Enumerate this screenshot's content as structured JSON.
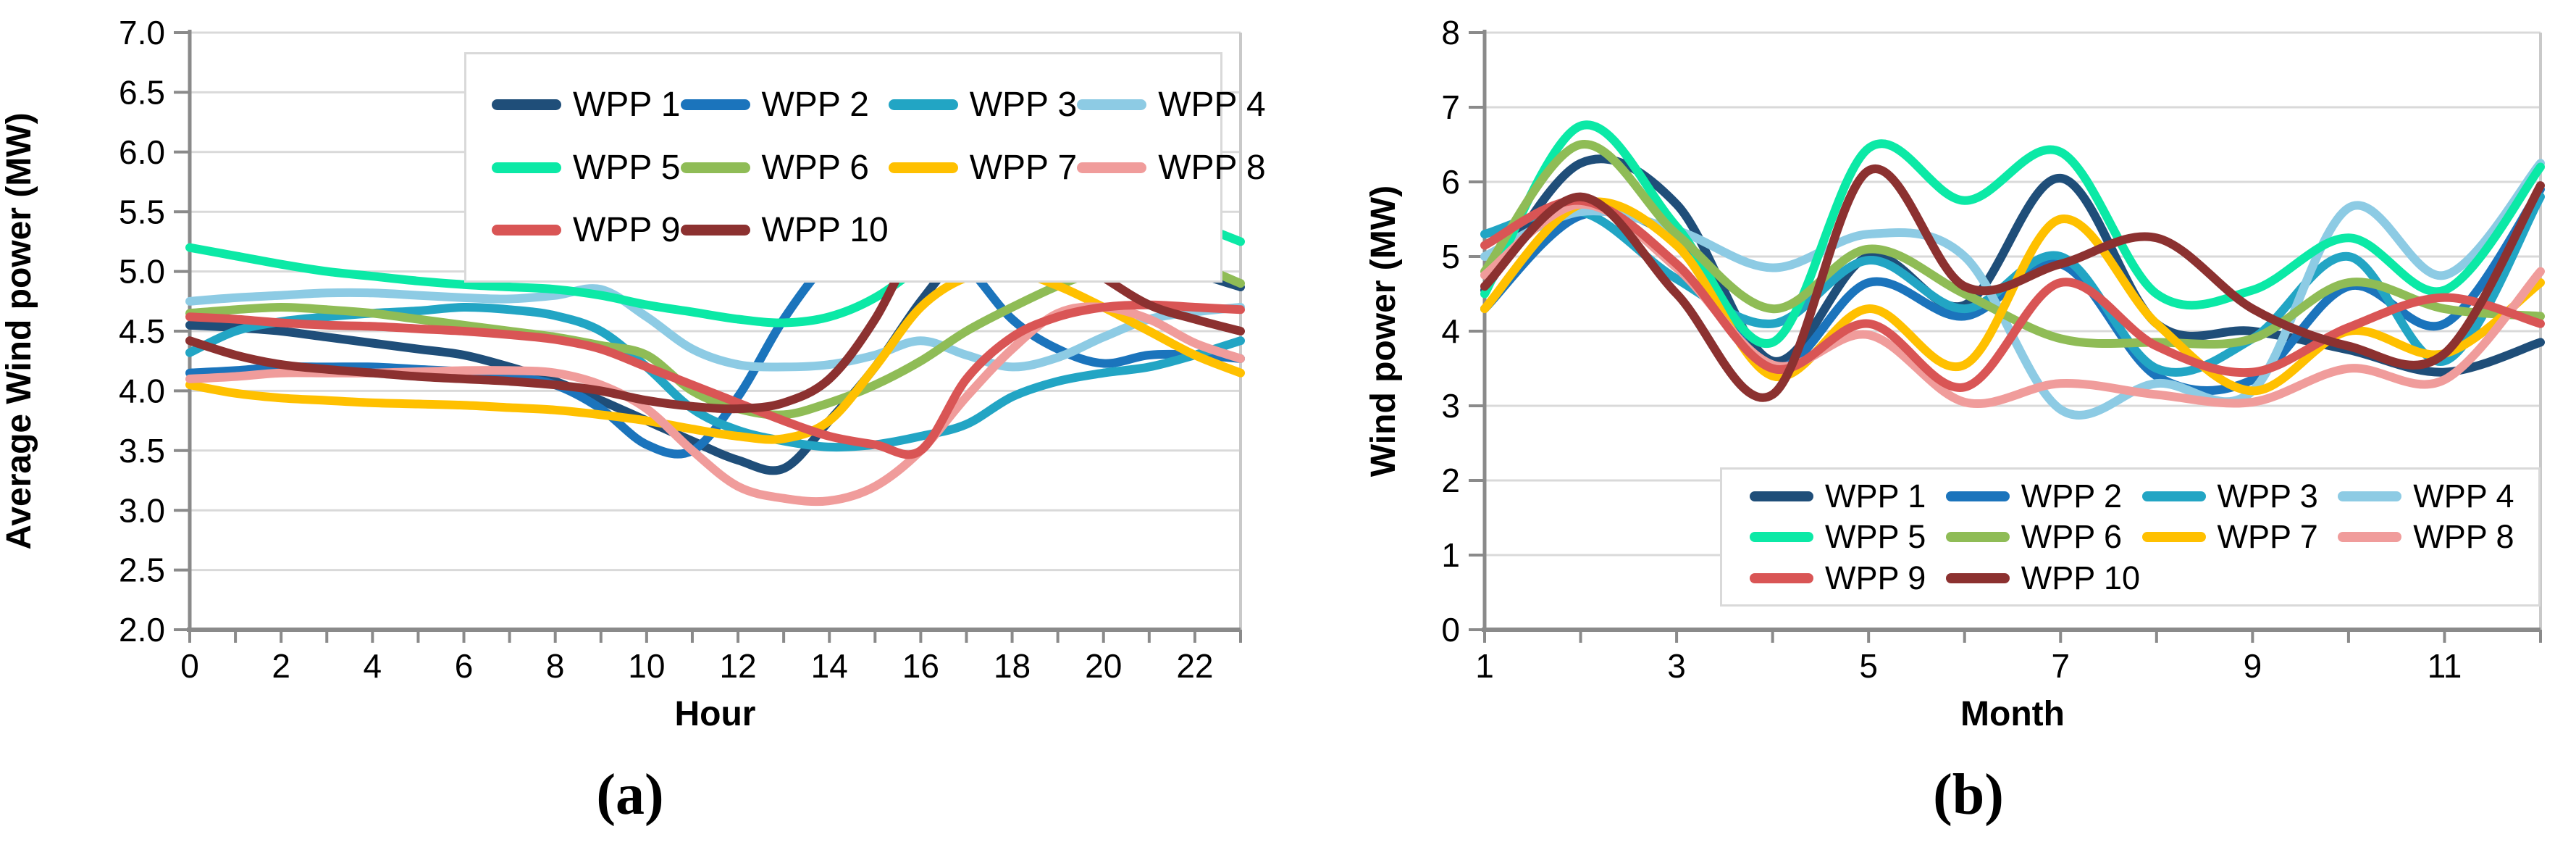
{
  "page": {
    "background": "#FFFFFF",
    "text_color": "#000000"
  },
  "captions": {
    "a": "(a)",
    "b": "(b)"
  },
  "styles": {
    "axis_color": "#8A8A8A",
    "grid_color": "#D9D9D9",
    "plot_border_color": "#C9C9C9",
    "legend_border_color": "#D9D9D9",
    "series_stroke_width": 12
  },
  "chart_data": [
    {
      "id": "a",
      "type": "line",
      "title": "",
      "xlabel": "Hour",
      "ylabel": "Average Wind power (MW)",
      "xlim": [
        0,
        23
      ],
      "ylim": [
        2.0,
        7.0
      ],
      "grid": true,
      "legend_position": "top-center-boxed",
      "ytick_values": [
        2.0,
        2.5,
        3.0,
        3.5,
        4.0,
        4.5,
        5.0,
        5.5,
        6.0,
        6.5,
        7.0
      ],
      "ytick_labels": [
        "2.0",
        "2.5",
        "3.0",
        "3.5",
        "4.0",
        "4.5",
        "5.0",
        "5.5",
        "6.0",
        "6.5",
        "7.0"
      ],
      "xtick_minor_values": [
        0,
        1,
        2,
        3,
        4,
        5,
        6,
        7,
        8,
        9,
        10,
        11,
        12,
        13,
        14,
        15,
        16,
        17,
        18,
        19,
        20,
        21,
        22,
        23
      ],
      "xtick_label_values": [
        0,
        2,
        4,
        6,
        8,
        10,
        12,
        14,
        16,
        18,
        20,
        22
      ],
      "xtick_labels": [
        "0",
        "2",
        "4",
        "6",
        "8",
        "10",
        "12",
        "14",
        "16",
        "18",
        "20",
        "22"
      ],
      "x": [
        0,
        1,
        2,
        3,
        4,
        5,
        6,
        7,
        8,
        9,
        10,
        11,
        12,
        13,
        14,
        15,
        16,
        17,
        18,
        19,
        20,
        21,
        22,
        23
      ],
      "series": [
        {
          "name": "WPP 1",
          "color": "#1F4E79",
          "values": [
            4.55,
            4.53,
            4.5,
            4.45,
            4.4,
            4.35,
            4.3,
            4.2,
            4.08,
            3.92,
            3.75,
            3.58,
            3.42,
            3.35,
            3.75,
            4.2,
            4.75,
            5.2,
            5.45,
            5.55,
            5.45,
            5.2,
            5.0,
            4.87
          ]
        },
        {
          "name": "WPP 2",
          "color": "#1B74BC",
          "values": [
            4.15,
            4.17,
            4.2,
            4.2,
            4.2,
            4.18,
            4.16,
            4.12,
            4.05,
            3.85,
            3.55,
            3.5,
            3.95,
            4.6,
            5.1,
            5.4,
            5.35,
            5.05,
            4.6,
            4.35,
            4.23,
            4.3,
            4.3,
            4.27
          ]
        },
        {
          "name": "WPP 3",
          "color": "#22A5C4",
          "values": [
            4.32,
            4.5,
            4.58,
            4.62,
            4.65,
            4.67,
            4.7,
            4.68,
            4.63,
            4.5,
            4.2,
            3.85,
            3.67,
            3.58,
            3.53,
            3.55,
            3.62,
            3.72,
            3.95,
            4.08,
            4.15,
            4.2,
            4.3,
            4.42
          ]
        },
        {
          "name": "WPP 4",
          "color": "#8DCBE4",
          "values": [
            4.75,
            4.78,
            4.8,
            4.82,
            4.82,
            4.8,
            4.78,
            4.77,
            4.8,
            4.85,
            4.62,
            4.35,
            4.22,
            4.2,
            4.22,
            4.3,
            4.42,
            4.3,
            4.2,
            4.28,
            4.45,
            4.6,
            4.66,
            4.7
          ]
        },
        {
          "name": "WPP 5",
          "color": "#0BE9A6",
          "values": [
            5.2,
            5.13,
            5.06,
            5.0,
            4.96,
            4.92,
            4.89,
            4.87,
            4.85,
            4.8,
            4.72,
            4.66,
            4.6,
            4.57,
            4.62,
            4.78,
            5.05,
            5.35,
            5.65,
            5.78,
            5.72,
            5.55,
            5.4,
            5.25
          ]
        },
        {
          "name": "WPP 6",
          "color": "#8FBC56",
          "values": [
            4.65,
            4.68,
            4.7,
            4.68,
            4.65,
            4.6,
            4.55,
            4.5,
            4.45,
            4.38,
            4.3,
            4.0,
            3.85,
            3.8,
            3.9,
            4.05,
            4.25,
            4.5,
            4.7,
            4.88,
            5.02,
            5.1,
            5.05,
            4.9
          ]
        },
        {
          "name": "WPP 7",
          "color": "#FFC000",
          "values": [
            4.05,
            3.98,
            3.94,
            3.92,
            3.9,
            3.89,
            3.88,
            3.86,
            3.84,
            3.8,
            3.75,
            3.68,
            3.62,
            3.6,
            3.75,
            4.2,
            4.7,
            4.95,
            5.0,
            4.88,
            4.7,
            4.5,
            4.3,
            4.15
          ]
        },
        {
          "name": "WPP 8",
          "color": "#F09C9B",
          "values": [
            4.1,
            4.12,
            4.15,
            4.15,
            4.15,
            4.16,
            4.17,
            4.17,
            4.15,
            4.05,
            3.85,
            3.5,
            3.2,
            3.1,
            3.08,
            3.2,
            3.5,
            3.95,
            4.35,
            4.65,
            4.7,
            4.6,
            4.4,
            4.27
          ]
        },
        {
          "name": "WPP 9",
          "color": "#D95555",
          "values": [
            4.62,
            4.6,
            4.57,
            4.55,
            4.54,
            4.52,
            4.5,
            4.47,
            4.43,
            4.35,
            4.2,
            4.05,
            3.9,
            3.75,
            3.62,
            3.55,
            3.5,
            4.1,
            4.45,
            4.62,
            4.7,
            4.72,
            4.7,
            4.68
          ]
        },
        {
          "name": "WPP 10",
          "color": "#8C3130",
          "values": [
            4.42,
            4.3,
            4.22,
            4.18,
            4.15,
            4.12,
            4.1,
            4.08,
            4.05,
            4.0,
            3.92,
            3.87,
            3.85,
            3.9,
            4.1,
            4.6,
            5.3,
            5.6,
            5.5,
            5.2,
            4.95,
            4.72,
            4.6,
            4.5
          ]
        }
      ]
    },
    {
      "id": "b",
      "type": "line",
      "title": "",
      "xlabel": "Month",
      "ylabel": "Wind power (MW)",
      "xlim": [
        1,
        12
      ],
      "ylim": [
        0,
        8
      ],
      "grid": true,
      "legend_position": "bottom-right-boxed",
      "ytick_values": [
        0,
        1,
        2,
        3,
        4,
        5,
        6,
        7,
        8
      ],
      "ytick_labels": [
        "0",
        "1",
        "2",
        "3",
        "4",
        "5",
        "6",
        "7",
        "8"
      ],
      "xtick_minor_values": [
        1,
        2,
        3,
        4,
        5,
        6,
        7,
        8,
        9,
        10,
        11,
        12
      ],
      "xtick_label_values": [
        1,
        3,
        5,
        7,
        9,
        11
      ],
      "xtick_labels": [
        "1",
        "3",
        "5",
        "7",
        "9",
        "11"
      ],
      "x": [
        1,
        2,
        3,
        4,
        5,
        6,
        7,
        8,
        9,
        10,
        11,
        12
      ],
      "series": [
        {
          "name": "WPP 1",
          "color": "#1F4E79",
          "values": [
            4.55,
            6.25,
            5.7,
            3.6,
            5.0,
            4.35,
            6.05,
            4.1,
            4.0,
            3.75,
            3.45,
            3.85
          ]
        },
        {
          "name": "WPP 2",
          "color": "#1B74BC",
          "values": [
            4.3,
            5.55,
            5.2,
            3.5,
            4.65,
            4.2,
            4.9,
            3.4,
            3.35,
            4.6,
            4.1,
            5.9
          ]
        },
        {
          "name": "WPP 3",
          "color": "#22A5C4",
          "values": [
            5.3,
            5.6,
            4.7,
            4.1,
            4.95,
            4.3,
            5.0,
            3.5,
            3.9,
            5.0,
            3.6,
            5.8
          ]
        },
        {
          "name": "WPP 4",
          "color": "#8DCBE4",
          "values": [
            5.0,
            5.6,
            5.35,
            4.85,
            5.3,
            5.0,
            2.95,
            3.3,
            3.2,
            5.65,
            4.75,
            6.25
          ]
        },
        {
          "name": "WPP 5",
          "color": "#0BE9A6",
          "values": [
            4.5,
            6.75,
            5.4,
            3.85,
            6.45,
            5.75,
            6.4,
            4.5,
            4.55,
            5.25,
            4.55,
            6.2
          ]
        },
        {
          "name": "WPP 6",
          "color": "#8FBC56",
          "values": [
            4.8,
            6.5,
            5.3,
            4.3,
            5.1,
            4.5,
            3.9,
            3.85,
            3.9,
            4.65,
            4.3,
            4.2
          ]
        },
        {
          "name": "WPP 7",
          "color": "#FFC000",
          "values": [
            4.3,
            5.7,
            5.15,
            3.4,
            4.3,
            3.55,
            5.5,
            4.1,
            3.2,
            4.0,
            3.7,
            4.65
          ]
        },
        {
          "name": "WPP 8",
          "color": "#F09C9B",
          "values": [
            4.75,
            5.7,
            4.85,
            3.55,
            3.95,
            3.05,
            3.3,
            3.15,
            3.05,
            3.5,
            3.35,
            4.8
          ]
        },
        {
          "name": "WPP 9",
          "color": "#D95555",
          "values": [
            5.15,
            5.75,
            4.9,
            3.5,
            4.1,
            3.25,
            4.65,
            3.8,
            3.45,
            4.05,
            4.45,
            4.1
          ]
        },
        {
          "name": "WPP 10",
          "color": "#8C3130",
          "values": [
            4.6,
            5.8,
            4.5,
            3.15,
            6.15,
            4.6,
            4.9,
            5.25,
            4.3,
            3.8,
            3.7,
            5.95
          ]
        }
      ]
    }
  ]
}
